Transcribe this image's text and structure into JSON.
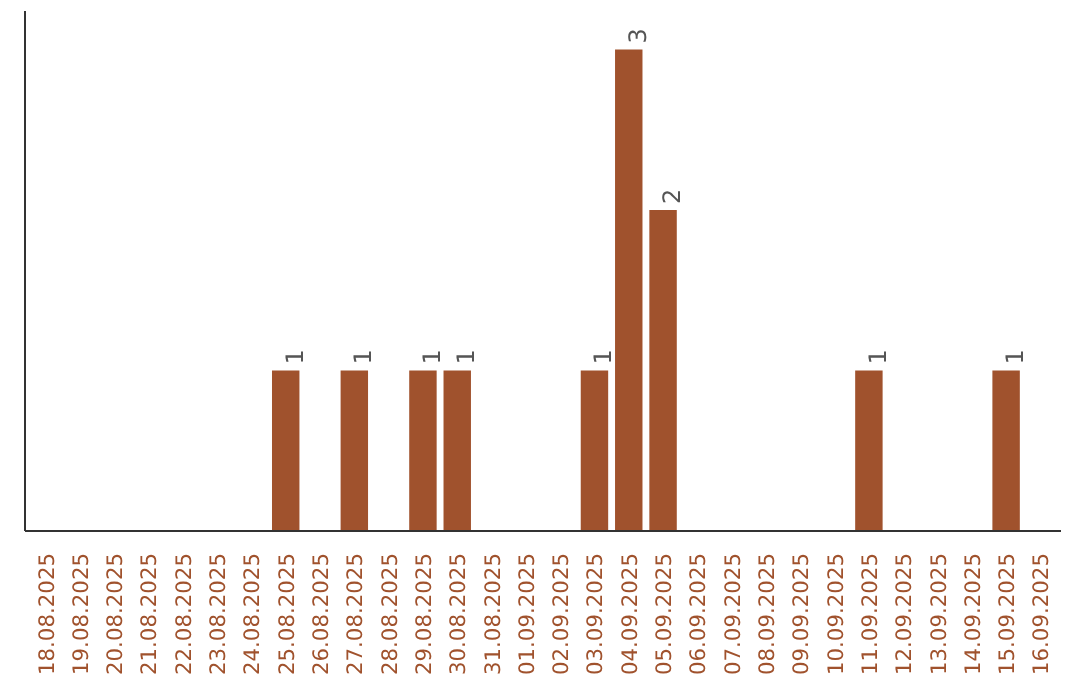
{
  "chart_data": {
    "type": "bar",
    "categories": [
      "18.08.2025",
      "19.08.2025",
      "20.08.2025",
      "21.08.2025",
      "22.08.2025",
      "23.08.2025",
      "24.08.2025",
      "25.08.2025",
      "26.08.2025",
      "27.08.2025",
      "28.08.2025",
      "29.08.2025",
      "30.08.2025",
      "31.08.2025",
      "01.09.2025",
      "02.09.2025",
      "03.09.2025",
      "04.09.2025",
      "05.09.2025",
      "06.09.2025",
      "07.09.2025",
      "08.09.2025",
      "09.09.2025",
      "10.09.2025",
      "11.09.2025",
      "12.09.2025",
      "13.09.2025",
      "14.09.2025",
      "15.09.2025",
      "16.09.2025"
    ],
    "values": [
      0,
      0,
      0,
      0,
      0,
      0,
      0,
      1,
      0,
      1,
      0,
      1,
      1,
      0,
      0,
      0,
      1,
      3,
      2,
      0,
      0,
      0,
      0,
      0,
      1,
      0,
      0,
      0,
      1,
      0
    ],
    "value_labels": [
      null,
      null,
      null,
      null,
      null,
      null,
      null,
      "1",
      null,
      "1",
      null,
      "1",
      "1",
      null,
      null,
      null,
      "1",
      "3",
      "2",
      null,
      null,
      null,
      null,
      null,
      "1",
      null,
      null,
      null,
      "1",
      null
    ],
    "color": "#a0522d"
  }
}
